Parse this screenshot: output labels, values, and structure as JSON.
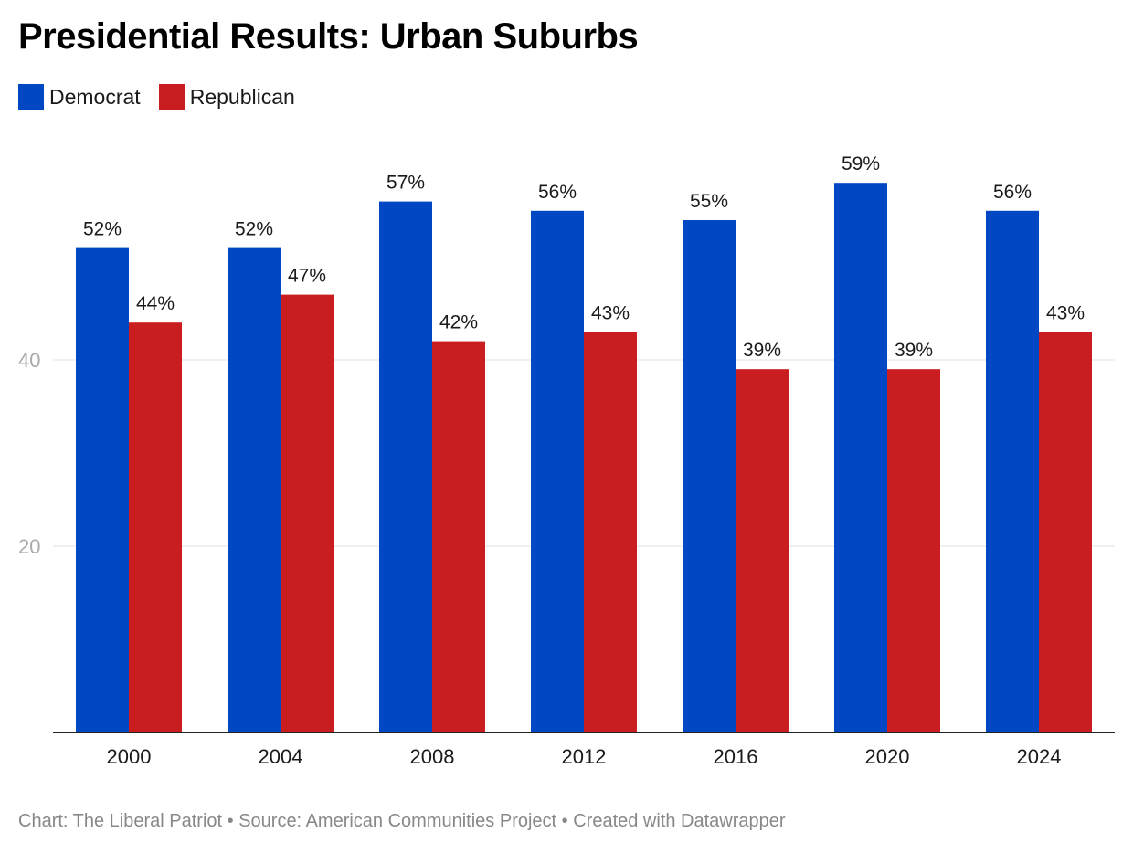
{
  "title": "Presidential Results: Urban Suburbs",
  "footer": "Chart: The Liberal Patriot • Source: American Communities Project • Created with Datawrapper",
  "chart_data": {
    "type": "bar",
    "title": "Presidential Results: Urban Suburbs",
    "categories": [
      "2000",
      "2004",
      "2008",
      "2012",
      "2016",
      "2020",
      "2024"
    ],
    "series": [
      {
        "name": "Democrat",
        "color": "#0047c4",
        "values": [
          52,
          52,
          57,
          56,
          55,
          59,
          56
        ],
        "labels": [
          "52%",
          "52%",
          "57%",
          "56%",
          "55%",
          "59%",
          "56%"
        ]
      },
      {
        "name": "Republican",
        "color": "#c91d1f",
        "values": [
          44,
          47,
          42,
          43,
          39,
          39,
          43
        ],
        "labels": [
          "44%",
          "47%",
          "42%",
          "43%",
          "39%",
          "39%",
          "43%"
        ]
      }
    ],
    "yticks": [
      20,
      40
    ],
    "ylim": [
      0,
      62
    ],
    "grid": true,
    "legend": "top-left"
  }
}
